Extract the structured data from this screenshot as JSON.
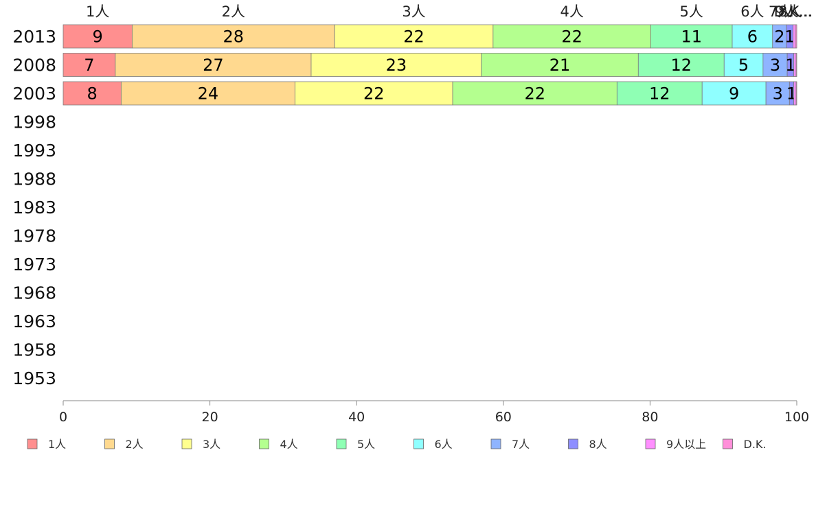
{
  "chart_data": {
    "type": "bar",
    "orientation": "horizontal",
    "stacked": true,
    "title": "",
    "xlabel": "",
    "ylabel": "",
    "xlim": [
      0,
      100
    ],
    "x_ticks": [
      "0",
      "20",
      "40",
      "60",
      "80",
      "100"
    ],
    "categories": [
      "2013",
      "2008",
      "2003",
      "1998",
      "1993",
      "1988",
      "1983",
      "1978",
      "1973",
      "1968",
      "1963",
      "1958",
      "1953"
    ],
    "series": [
      {
        "name": "1人",
        "color": "#ff8f8f",
        "values": [
          9.4,
          7.1,
          7.9,
          null,
          null,
          null,
          null,
          null,
          null,
          null,
          null,
          null,
          null
        ],
        "labels": [
          "9",
          "7",
          "8",
          "",
          "",
          "",
          "",
          "",
          "",
          "",
          "",
          "",
          ""
        ]
      },
      {
        "name": "2人",
        "color": "#ffd98f",
        "values": [
          27.6,
          26.7,
          23.7,
          null,
          null,
          null,
          null,
          null,
          null,
          null,
          null,
          null,
          null
        ],
        "labels": [
          "28",
          "27",
          "24",
          "",
          "",
          "",
          "",
          "",
          "",
          "",
          "",
          "",
          ""
        ]
      },
      {
        "name": "3人",
        "color": "#ffff8f",
        "values": [
          21.6,
          23.2,
          21.5,
          null,
          null,
          null,
          null,
          null,
          null,
          null,
          null,
          null,
          null
        ],
        "labels": [
          "22",
          "23",
          "22",
          "",
          "",
          "",
          "",
          "",
          "",
          "",
          "",
          "",
          ""
        ]
      },
      {
        "name": "4人",
        "color": "#b4ff8f",
        "values": [
          21.5,
          21.4,
          22.4,
          null,
          null,
          null,
          null,
          null,
          null,
          null,
          null,
          null,
          null
        ],
        "labels": [
          "22",
          "21",
          "22",
          "",
          "",
          "",
          "",
          "",
          "",
          "",
          "",
          "",
          ""
        ]
      },
      {
        "name": "5人",
        "color": "#8fffb4",
        "values": [
          11.1,
          11.7,
          11.6,
          null,
          null,
          null,
          null,
          null,
          null,
          null,
          null,
          null,
          null
        ],
        "labels": [
          "11",
          "12",
          "12",
          "",
          "",
          "",
          "",
          "",
          "",
          "",
          "",
          "",
          ""
        ]
      },
      {
        "name": "6人",
        "color": "#8fffff",
        "values": [
          5.5,
          5.3,
          8.7,
          null,
          null,
          null,
          null,
          null,
          null,
          null,
          null,
          null,
          null
        ],
        "labels": [
          "6",
          "5",
          "9",
          "",
          "",
          "",
          "",
          "",
          "",
          "",
          "",
          "",
          ""
        ]
      },
      {
        "name": "7人",
        "color": "#8fb4ff",
        "values": [
          1.9,
          3.3,
          3.2,
          null,
          null,
          null,
          null,
          null,
          null,
          null,
          null,
          null,
          null
        ],
        "labels": [
          "2",
          "3",
          "3",
          "",
          "",
          "",
          "",
          "",
          "",
          "",
          "",
          "",
          ""
        ]
      },
      {
        "name": "8人",
        "color": "#8f8fff",
        "values": [
          0.9,
          0.9,
          0.6,
          null,
          null,
          null,
          null,
          null,
          null,
          null,
          null,
          null,
          null
        ],
        "labels": [
          "1",
          "1",
          "1",
          "",
          "",
          "",
          "",
          "",
          "",
          "",
          "",
          "",
          ""
        ]
      },
      {
        "name": "9人以上",
        "color": "#ff8fff",
        "values": [
          0.3,
          0.3,
          0.3,
          null,
          null,
          null,
          null,
          null,
          null,
          null,
          null,
          null,
          null
        ],
        "labels": [
          "",
          "",
          "",
          "",
          "",
          "",
          "",
          "",
          "",
          "",
          "",
          "",
          ""
        ]
      },
      {
        "name": "D.K.",
        "color": "#ff8fd9",
        "values": [
          0.2,
          0.1,
          0.1,
          null,
          null,
          null,
          null,
          null,
          null,
          null,
          null,
          null,
          null
        ],
        "labels": [
          "",
          "",
          "",
          "",
          "",
          "",
          "",
          "",
          "",
          "",
          "",
          "",
          ""
        ]
      }
    ],
    "top_labels": [
      "1人",
      "2人",
      "3人",
      "4人",
      "5人",
      "6人",
      "7人",
      "8人",
      "9人...",
      "D.K..."
    ],
    "legend_position": "bottom",
    "grid": false
  }
}
